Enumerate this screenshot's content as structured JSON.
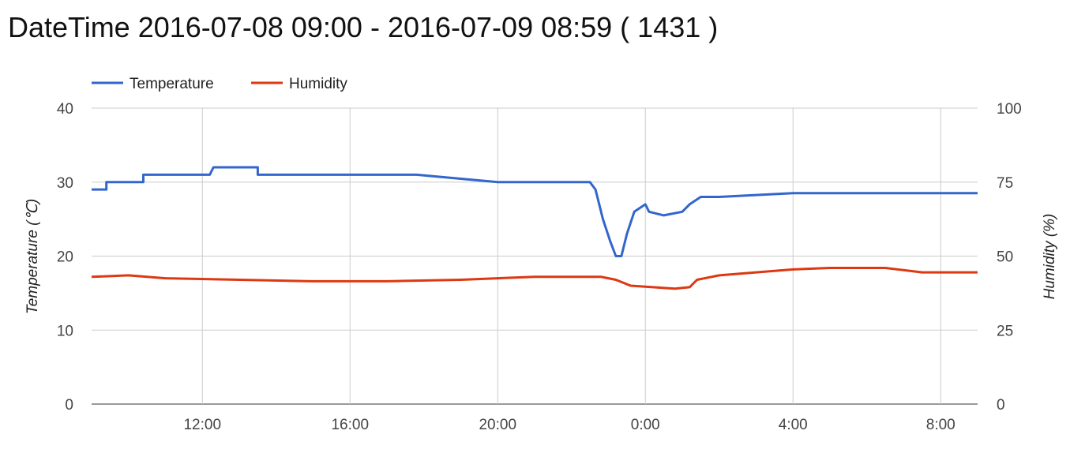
{
  "title": "DateTime 2016-07-08 09:00 - 2016-07-09 08:59 ( 1431 )",
  "chart_data": {
    "type": "line",
    "legend_position": "top-left",
    "grid": true,
    "x_ticks": [
      {
        "label": "12:00",
        "hour": 12
      },
      {
        "label": "16:00",
        "hour": 16
      },
      {
        "label": "20:00",
        "hour": 20
      },
      {
        "label": "0:00",
        "hour": 24
      },
      {
        "label": "4:00",
        "hour": 28
      },
      {
        "label": "8:00",
        "hour": 32
      }
    ],
    "x_range_hours": [
      9,
      33
    ],
    "y_left": {
      "label": "Temperature (℃)",
      "range": [
        0,
        40
      ],
      "ticks": [
        "0",
        "10",
        "20",
        "30",
        "40"
      ]
    },
    "y_right": {
      "label": "Humidity (%)",
      "range": [
        0,
        100
      ],
      "ticks": [
        "0",
        "25",
        "50",
        "75",
        "100"
      ]
    },
    "series": [
      {
        "name": "Temperature",
        "color": "#3366cc",
        "axis": "left",
        "points": [
          [
            9.0,
            29
          ],
          [
            9.4,
            29
          ],
          [
            9.4,
            30
          ],
          [
            10.4,
            30
          ],
          [
            10.4,
            31
          ],
          [
            11.9,
            31
          ],
          [
            12.2,
            31
          ],
          [
            12.3,
            32
          ],
          [
            13.5,
            32
          ],
          [
            13.5,
            31
          ],
          [
            15.3,
            31
          ],
          [
            15.6,
            31
          ],
          [
            17.8,
            31
          ],
          [
            20.0,
            30
          ],
          [
            21.0,
            30
          ],
          [
            22.5,
            30
          ],
          [
            22.65,
            29
          ],
          [
            22.85,
            25
          ],
          [
            23.05,
            22
          ],
          [
            23.2,
            20
          ],
          [
            23.35,
            20
          ],
          [
            23.5,
            23
          ],
          [
            23.7,
            26
          ],
          [
            24.0,
            27
          ],
          [
            24.1,
            26
          ],
          [
            24.5,
            25.5
          ],
          [
            25.0,
            26
          ],
          [
            25.2,
            27
          ],
          [
            25.5,
            28
          ],
          [
            26.0,
            28
          ],
          [
            28.0,
            28.5
          ],
          [
            30.0,
            28.5
          ],
          [
            32.0,
            28.5
          ],
          [
            33.0,
            28.5
          ]
        ]
      },
      {
        "name": "Humidity",
        "color": "#dc3912",
        "axis": "right",
        "points": [
          [
            9.0,
            43
          ],
          [
            10.0,
            43.5
          ],
          [
            11.0,
            42.5
          ],
          [
            13.0,
            42
          ],
          [
            15.0,
            41.5
          ],
          [
            17.0,
            41.5
          ],
          [
            19.0,
            42
          ],
          [
            20.0,
            42.5
          ],
          [
            21.0,
            43
          ],
          [
            22.0,
            43
          ],
          [
            22.8,
            43
          ],
          [
            23.2,
            42
          ],
          [
            23.6,
            40
          ],
          [
            24.2,
            39.5
          ],
          [
            24.8,
            39
          ],
          [
            25.2,
            39.5
          ],
          [
            25.4,
            42
          ],
          [
            26.0,
            43.5
          ],
          [
            27.0,
            44.5
          ],
          [
            28.0,
            45.5
          ],
          [
            29.0,
            46
          ],
          [
            30.5,
            46
          ],
          [
            31.5,
            44.5
          ],
          [
            33.0,
            44.5
          ]
        ]
      }
    ]
  }
}
